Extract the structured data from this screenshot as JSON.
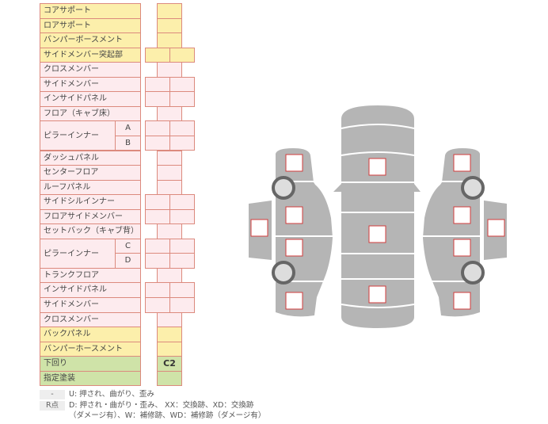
{
  "colors": {
    "yellow": "#fcefab",
    "pink": "#fdebee",
    "green": "#cfe3a8",
    "border": "#dc8a7e",
    "body": "#b5b5b5",
    "mark": "#d23c3c"
  },
  "rows": [
    {
      "label": "コアサポート",
      "color": "yellow",
      "cells": "single"
    },
    {
      "label": "ロアサポート",
      "color": "yellow",
      "cells": "single"
    },
    {
      "label": "バンパーボースメント",
      "color": "yellow",
      "cells": "single"
    },
    {
      "label": "サイドメンバー突起部",
      "color": "yellow",
      "cells": "double"
    },
    {
      "label": "クロスメンバー",
      "color": "pink",
      "cells": "single"
    },
    {
      "label": "サイドメンバー",
      "color": "pink",
      "cells": "double"
    },
    {
      "label": "インサイドパネル",
      "color": "pink",
      "cells": "double"
    },
    {
      "label": "フロア（キャブ床）",
      "color": "pink",
      "cells": "single"
    },
    {
      "label": "ピラーインナー",
      "sub": "A",
      "color": "pink",
      "cells": "double"
    },
    {
      "label": "",
      "sub": "B",
      "color": "pink",
      "cells": "double"
    },
    {
      "label": "ダッシュパネル",
      "color": "pink",
      "cells": "single"
    },
    {
      "label": "センターフロア",
      "color": "pink",
      "cells": "single"
    },
    {
      "label": "ルーフパネル",
      "color": "pink",
      "cells": "single"
    },
    {
      "label": "サイドシルインナー",
      "color": "pink",
      "cells": "double"
    },
    {
      "label": "フロアサイドメンバー",
      "color": "pink",
      "cells": "double"
    },
    {
      "label": "セットバック（キャブ背）",
      "color": "pink",
      "cells": "single"
    },
    {
      "label": "ピラーインナー",
      "sub": "C",
      "color": "pink",
      "cells": "double"
    },
    {
      "label": "",
      "sub": "D",
      "color": "pink",
      "cells": "double"
    },
    {
      "label": "トランクフロア",
      "color": "pink",
      "cells": "single"
    },
    {
      "label": "インサイドパネル",
      "color": "pink",
      "cells": "double"
    },
    {
      "label": "サイドメンバー",
      "color": "pink",
      "cells": "double"
    },
    {
      "label": "クロスメンバー",
      "color": "pink",
      "cells": "single"
    },
    {
      "label": "バックパネル",
      "color": "yellow",
      "cells": "single"
    },
    {
      "label": "バンパーホースメント",
      "color": "yellow",
      "cells": "single"
    },
    {
      "label": "下回り",
      "color": "green",
      "cells": "single",
      "value": "C2"
    },
    {
      "label": "指定塗装",
      "color": "green",
      "cells": "single"
    }
  ],
  "legend": {
    "key1": "-",
    "text1": "U: 押され、曲がり、歪み",
    "key2": "R点",
    "text2": "D: 押され・曲がり・歪み、 XX：交換跡、XD：交換跡",
    "text3": "（ダメージ有）、W：補修跡、WD：補修跡（ダメージ有）"
  }
}
